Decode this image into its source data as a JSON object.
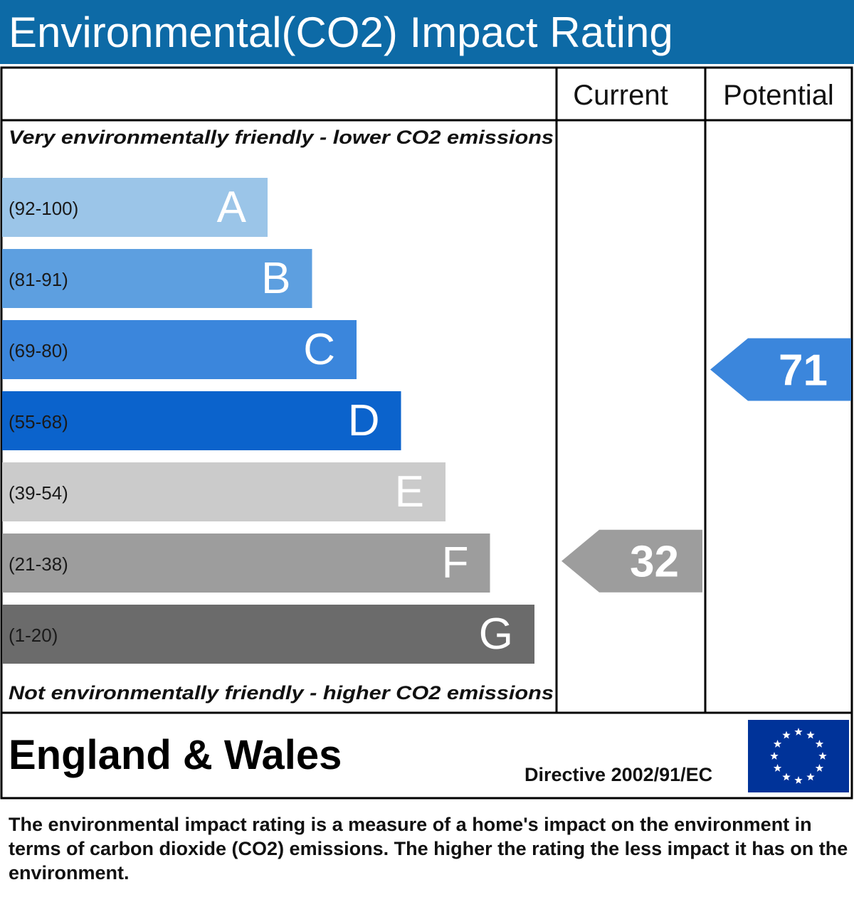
{
  "header": {
    "title": "Environmental(CO2) Impact Rating"
  },
  "columns": {
    "current": "Current",
    "potential": "Potential"
  },
  "captions": {
    "top": "Very environmentally friendly - lower CO2 emissions",
    "bottom": "Not environmentally friendly - higher CO2 emissions"
  },
  "chart_data": {
    "type": "bar",
    "categories": [
      "A",
      "B",
      "C",
      "D",
      "E",
      "F",
      "G"
    ],
    "ranges": [
      "(92-100)",
      "(81-91)",
      "(69-80)",
      "(55-68)",
      "(39-54)",
      "(21-38)",
      "(1-20)"
    ],
    "colors": [
      "#9bc5e8",
      "#5d9fe0",
      "#3b86dc",
      "#0b63cc",
      "#cbcbcb",
      "#9d9d9d",
      "#6b6b6b"
    ],
    "current": {
      "value": 32,
      "band": "F",
      "color": "#9d9d9d"
    },
    "potential": {
      "value": 71,
      "band": "C",
      "color": "#3b86dc"
    }
  },
  "footer": {
    "region": "England & Wales",
    "directive": "Directive 2002/91/EC",
    "flag_icon": "eu-flag-icon",
    "flag_color": "#003399",
    "star_color": "#ffffff"
  },
  "footnote": "The environmental impact rating is a measure of a home's impact on the environment in terms of carbon dioxide (CO2) emissions. The higher the rating the less impact it has on the environment."
}
